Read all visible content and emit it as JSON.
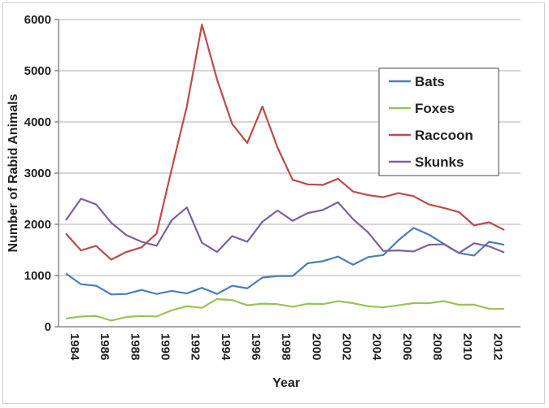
{
  "chart_data": {
    "type": "line",
    "title": "",
    "xlabel": "Year",
    "ylabel": "Number of Rabid Animals",
    "ylim": [
      0,
      6000
    ],
    "yticks": [
      "0",
      "1000",
      "2000",
      "3000",
      "4000",
      "5000",
      "6000"
    ],
    "xticks": [
      "1984",
      "1986",
      "1988",
      "1990",
      "1992",
      "1994",
      "1996",
      "1998",
      "2000",
      "2002",
      "2004",
      "2006",
      "2008",
      "2010",
      "2012"
    ],
    "grid": "horizontal",
    "legend_position": "top-right",
    "x": [
      1984,
      1985,
      1986,
      1987,
      1988,
      1989,
      1990,
      1991,
      1992,
      1993,
      1994,
      1995,
      1996,
      1997,
      1998,
      1999,
      2000,
      2001,
      2002,
      2003,
      2004,
      2005,
      2006,
      2007,
      2008,
      2009,
      2010,
      2011,
      2012,
      2013
    ],
    "series": [
      {
        "name": "Bats",
        "color": "#4a7ebb",
        "values": [
          1040,
          830,
          800,
          630,
          640,
          720,
          640,
          700,
          650,
          760,
          640,
          800,
          750,
          960,
          990,
          990,
          1240,
          1280,
          1370,
          1210,
          1360,
          1400,
          1690,
          1930,
          1800,
          1620,
          1440,
          1390,
          1660,
          1600
        ]
      },
      {
        "name": "Foxes",
        "color": "#98c35a",
        "values": [
          160,
          200,
          210,
          120,
          190,
          210,
          200,
          320,
          400,
          370,
          540,
          520,
          420,
          450,
          440,
          390,
          450,
          440,
          500,
          460,
          400,
          380,
          420,
          460,
          460,
          500,
          430,
          430,
          350,
          350
        ]
      },
      {
        "name": "Raccoon",
        "color": "#be4b48",
        "values": [
          1820,
          1490,
          1580,
          1310,
          1460,
          1550,
          1820,
          3080,
          4300,
          5900,
          4830,
          3960,
          3590,
          4300,
          3500,
          2870,
          2780,
          2770,
          2890,
          2640,
          2570,
          2530,
          2610,
          2550,
          2390,
          2320,
          2240,
          1980,
          2040,
          1890
        ]
      },
      {
        "name": "Skunks",
        "color": "#7d60a0",
        "values": [
          2080,
          2500,
          2390,
          2030,
          1790,
          1660,
          1580,
          2080,
          2330,
          1640,
          1460,
          1770,
          1660,
          2050,
          2270,
          2070,
          2220,
          2280,
          2430,
          2100,
          1840,
          1480,
          1490,
          1470,
          1600,
          1610,
          1440,
          1630,
          1570,
          1450
        ]
      }
    ]
  }
}
